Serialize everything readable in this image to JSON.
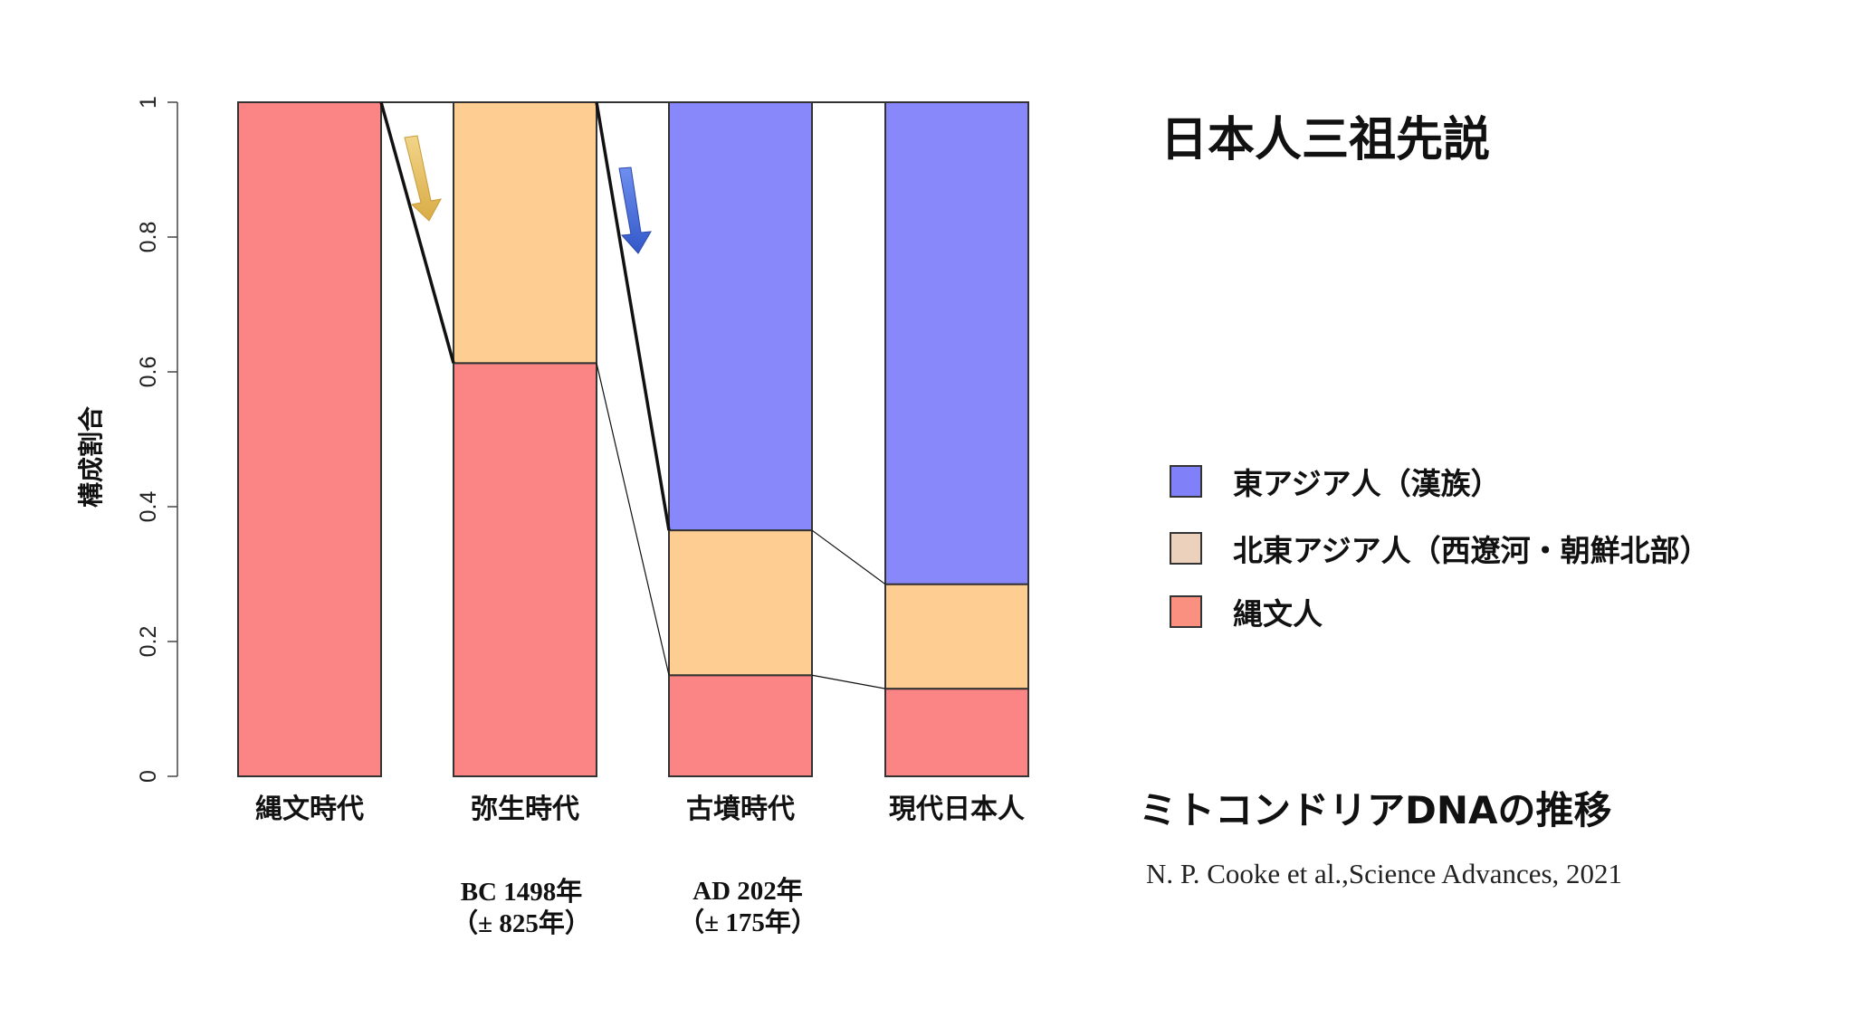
{
  "title": "日本人三祖先説",
  "subtitle": "ミトコンドリアDNAの推移",
  "citation": "N. P. Cooke et al.,Science Advances, 2021",
  "legend": [
    {
      "label": "東アジア人（漢族）",
      "color": "#8080f8"
    },
    {
      "label": "北東アジア人（西遼河・朝鮮北部）",
      "color": "#ecd2bc"
    },
    {
      "label": "縄文人",
      "color": "#f99080"
    }
  ],
  "dates": [
    {
      "line1": "BC 1498年",
      "line2": "（± 825年）"
    },
    {
      "line1": "AD 202年",
      "line2": "（± 175年）"
    }
  ],
  "chart_data": {
    "type": "bar",
    "stacked": true,
    "categories": [
      "縄文時代",
      "弥生時代",
      "古墳時代",
      "現代日本人"
    ],
    "ylabel": "構成割合",
    "ylim": [
      0,
      1
    ],
    "yticks": [
      "0",
      "0.2",
      "0.4",
      "0.6",
      "0.8",
      "1"
    ],
    "series": [
      {
        "values": [
          1.0,
          0.613,
          0.15,
          0.13
        ],
        "color": "#fb8585"
      },
      {
        "values": [
          0.0,
          0.387,
          0.215,
          0.155
        ],
        "color": "#fdcd92"
      },
      {
        "values": [
          0.0,
          0.0,
          0.635,
          0.715
        ],
        "color": "#8888fb"
      }
    ],
    "arrow_colors": [
      "#e6c36a",
      "#4f6fdc"
    ]
  }
}
